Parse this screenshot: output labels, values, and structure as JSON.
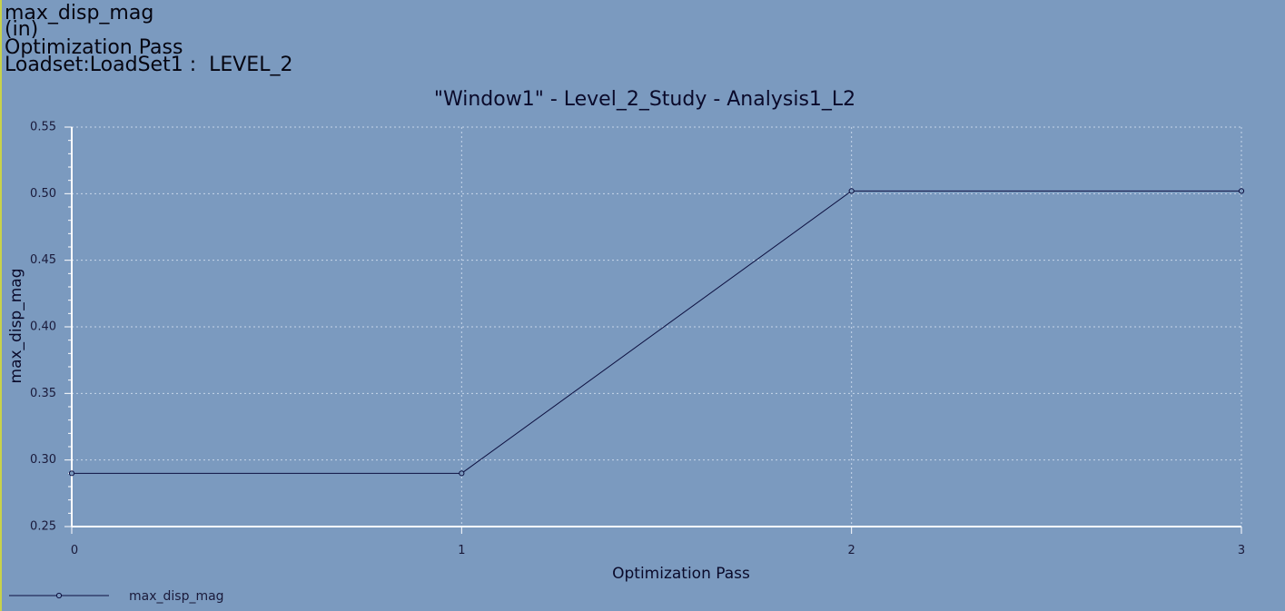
{
  "header": {
    "variable": "max_disp_mag",
    "units": "(in)",
    "x_quantity": "Optimization Pass",
    "loadset": "Loadset:LoadSet1 :  LEVEL_2"
  },
  "colors": {
    "background": "#7b9abf",
    "plot_line": "#0d1040",
    "grid": "#c7d6ea",
    "axis": "#ffffff",
    "left_edge": "#c8d24a"
  },
  "chart_data": {
    "type": "line",
    "title": "\"Window1\" - Level_2_Study - Analysis1_L2",
    "xlabel": "Optimization Pass",
    "ylabel": "max_disp_mag",
    "xlim": [
      0,
      3
    ],
    "ylim": [
      0.25,
      0.55
    ],
    "x_ticks": [
      "0",
      "1",
      "2",
      "3"
    ],
    "y_ticks": [
      "0.25",
      "0.30",
      "0.35",
      "0.40",
      "0.45",
      "0.50",
      "0.55"
    ],
    "grid": true,
    "legend_position": "bottom-left",
    "series": [
      {
        "name": "max_disp_mag",
        "x": [
          0,
          1,
          2,
          3
        ],
        "values": [
          0.29,
          0.29,
          0.502,
          0.502
        ],
        "marker": "circle"
      }
    ]
  }
}
